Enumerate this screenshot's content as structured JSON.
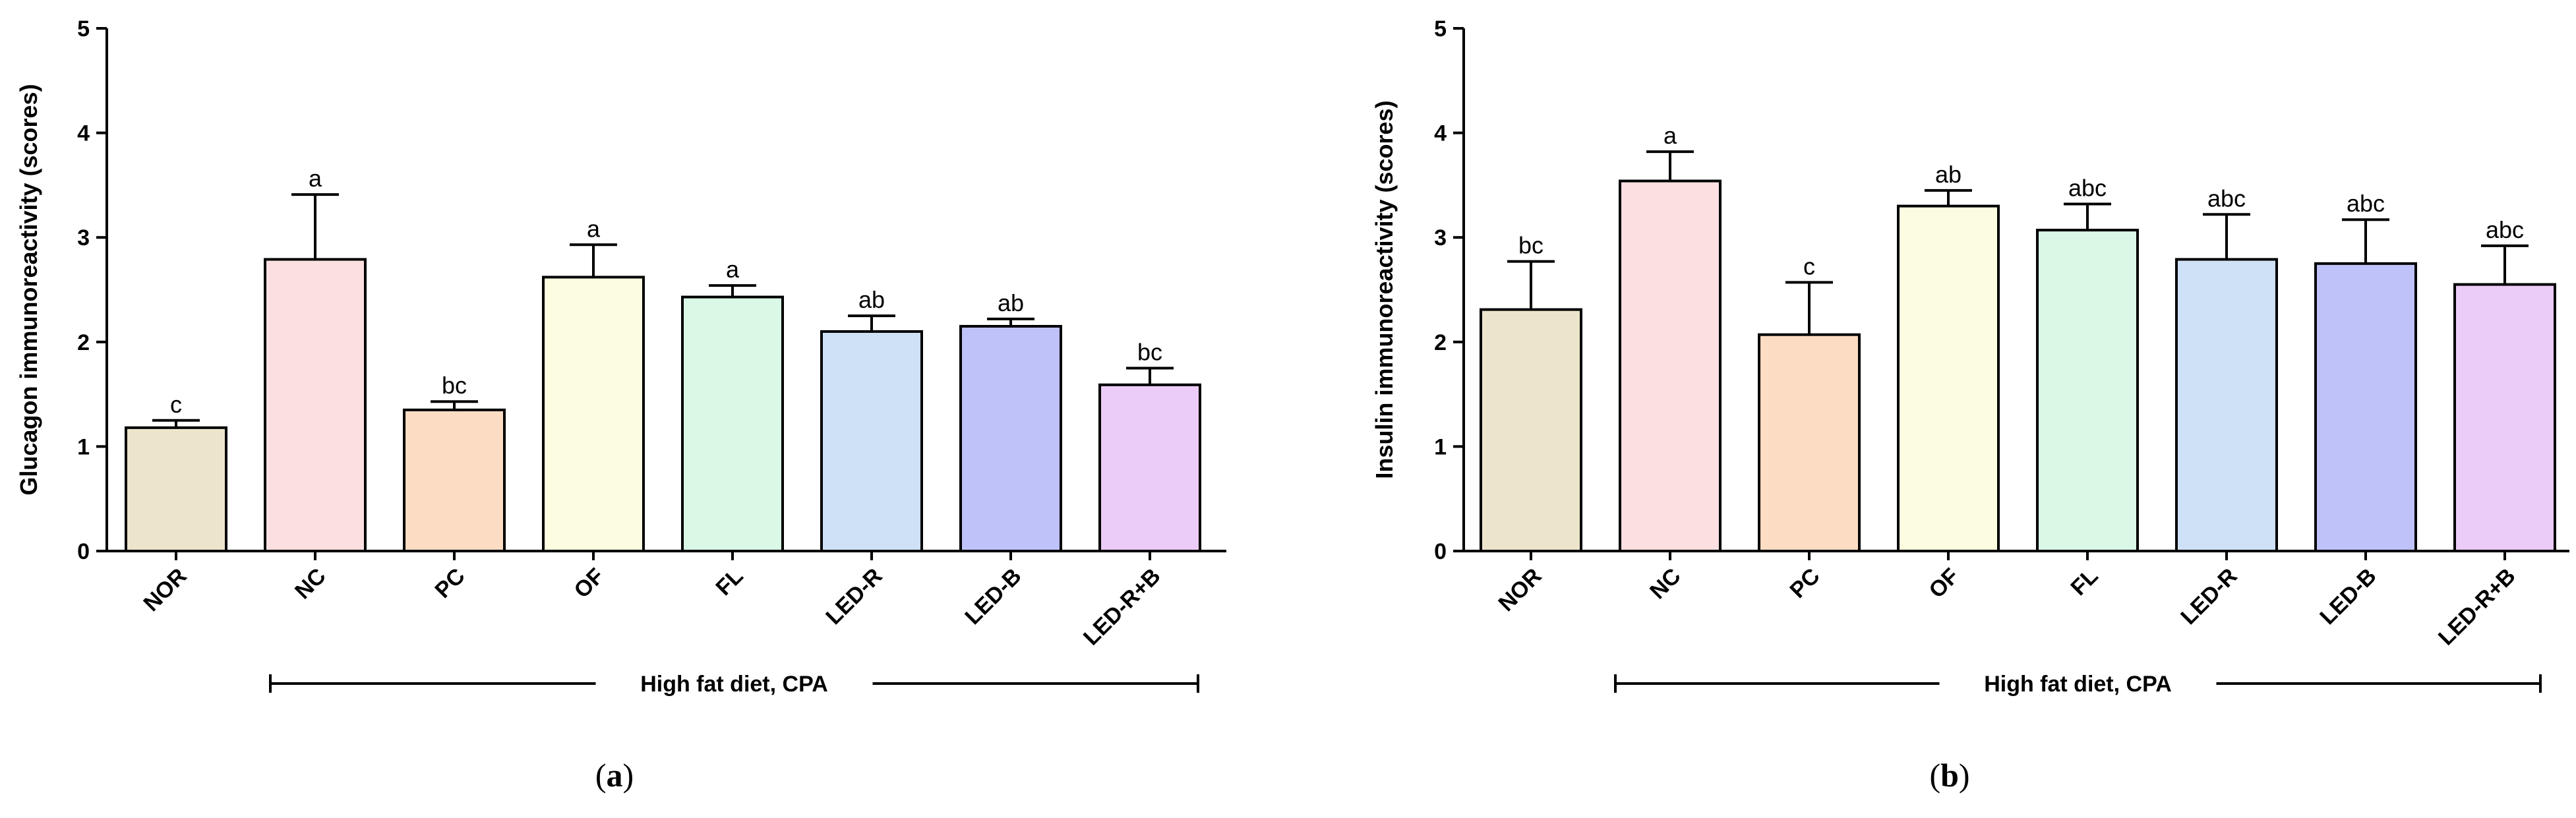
{
  "chart_data": [
    {
      "type": "bar",
      "id": "a",
      "panel_label_open": "(",
      "panel_label_letter": "a",
      "panel_label_close": ")",
      "ylabel": "Glucagon immunoreactivity (scores)",
      "ylim": [
        0,
        5
      ],
      "yticks": [
        "0",
        "1",
        "2",
        "3",
        "4",
        "5"
      ],
      "categories": [
        "NOR",
        "NC",
        "PC",
        "OF",
        "FL",
        "LED-R",
        "LED-B",
        "LED-R+B"
      ],
      "values": [
        1.18,
        2.79,
        1.35,
        2.62,
        2.43,
        2.1,
        2.15,
        1.59
      ],
      "errors": [
        0.07,
        0.62,
        0.08,
        0.31,
        0.11,
        0.15,
        0.07,
        0.16
      ],
      "significance": [
        "c",
        "a",
        "bc",
        "a",
        "a",
        "ab",
        "ab",
        "bc"
      ],
      "colors": [
        "#ece5cc",
        "#fcdfe0",
        "#fcdcc3",
        "#fcfce0",
        "#d9f8e6",
        "#cfe1f6",
        "#bfc2f9",
        "#ebcbf7"
      ],
      "bracket_label": "High fat diet, CPA"
    },
    {
      "type": "bar",
      "id": "b",
      "panel_label_open": "(",
      "panel_label_letter": "b",
      "panel_label_close": ")",
      "ylabel": "Insulin immunoreactivity (scores)",
      "ylim": [
        0,
        5
      ],
      "yticks": [
        "0",
        "1",
        "2",
        "3",
        "4",
        "5"
      ],
      "categories": [
        "NOR",
        "NC",
        "PC",
        "OF",
        "FL",
        "LED-R",
        "LED-B",
        "LED-R+B"
      ],
      "values": [
        2.31,
        3.54,
        2.07,
        3.3,
        3.07,
        2.79,
        2.75,
        2.55
      ],
      "errors": [
        0.46,
        0.28,
        0.5,
        0.15,
        0.25,
        0.43,
        0.42,
        0.37
      ],
      "significance": [
        "bc",
        "a",
        "c",
        "ab",
        "abc",
        "abc",
        "abc",
        "abc"
      ],
      "colors": [
        "#ece5cc",
        "#fcdfe0",
        "#fcdcc3",
        "#fcfce0",
        "#d9f8e6",
        "#cfe1f6",
        "#bfc2f9",
        "#ebcbf7"
      ],
      "bracket_label": "High fat diet, CPA"
    }
  ]
}
